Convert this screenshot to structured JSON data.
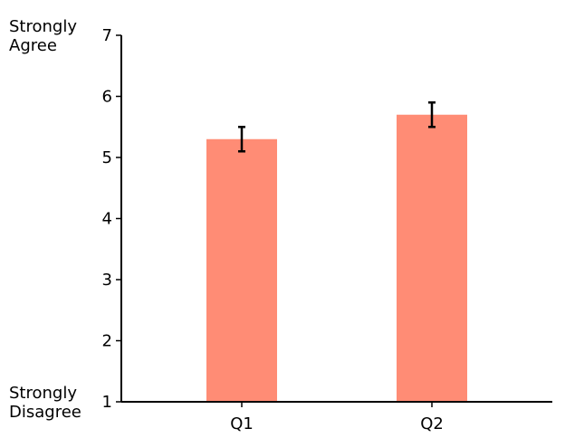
{
  "chart_data": {
    "type": "bar",
    "categories": [
      "Q1",
      "Q2"
    ],
    "values": [
      5.3,
      5.7
    ],
    "errors": [
      0.2,
      0.2
    ],
    "ylim": [
      1,
      7
    ],
    "yticks": [
      "1",
      "2",
      "3",
      "4",
      "5",
      "6",
      "7"
    ],
    "y_top_label": [
      "Strongly",
      "Agree"
    ],
    "y_bottom_label": [
      "Strongly",
      "Disagree"
    ],
    "bar_color": "#ff8c75",
    "error_color": "#000000",
    "grid": false,
    "legend": "none"
  }
}
